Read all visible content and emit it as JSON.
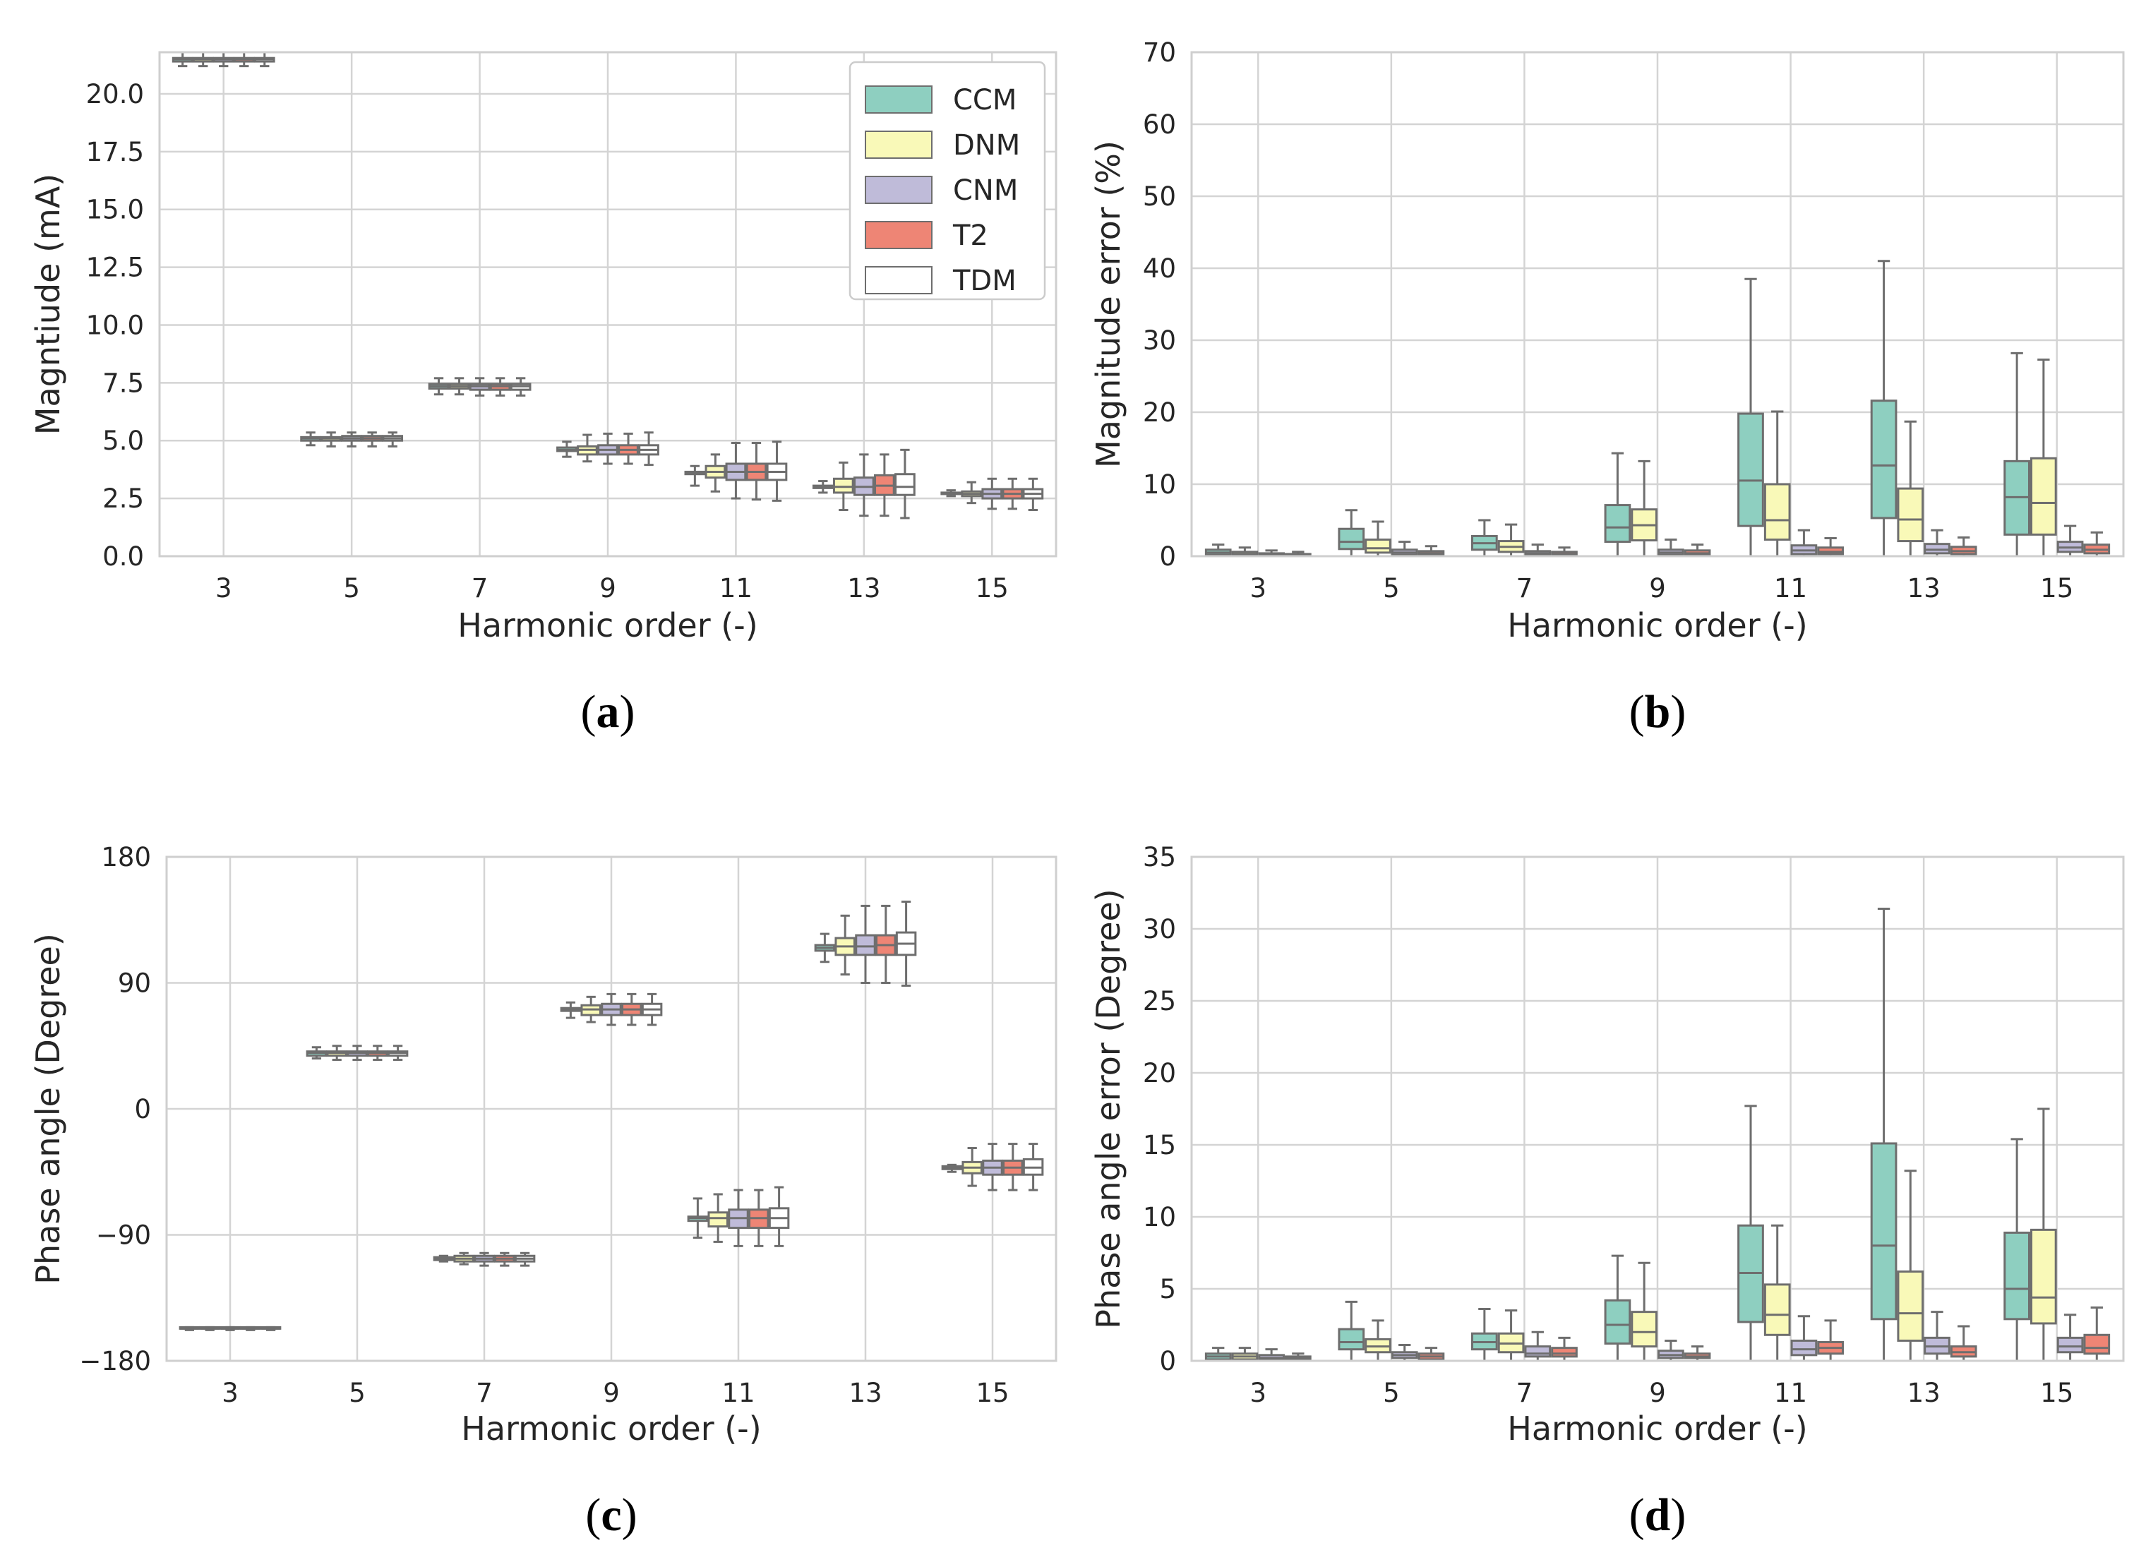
{
  "figure": {
    "palette": {
      "CCM": "#8ecfc0",
      "DNM": "#f9f9b8",
      "CNM": "#bfbbd9",
      "T2": "#ee8575",
      "TDM": "#ffffff",
      "line": "#6e6e6e",
      "grid": "#d4d4d4",
      "frame": "#cfcfcf"
    },
    "legend": [
      "CCM",
      "DNM",
      "CNM",
      "T2",
      "TDM"
    ]
  },
  "chart_data": [
    {
      "id": "a",
      "type": "box",
      "sublabel": "(a)",
      "xlabel": "Harmonic order (-)",
      "ylabel": "Magntiude (mA)",
      "categories": [
        "3",
        "5",
        "7",
        "9",
        "11",
        "13",
        "15"
      ],
      "yticks": [
        "0.0",
        "2.5",
        "5.0",
        "7.5",
        "10.0",
        "12.5",
        "15.0",
        "17.5",
        "20.0"
      ],
      "ylim": [
        0,
        21.8
      ],
      "ytick_values": [
        0,
        2.5,
        5,
        7.5,
        10,
        12.5,
        15,
        17.5,
        20
      ],
      "legend": "top-right",
      "series": [
        {
          "name": "CCM",
          "boxes": [
            [
              21.2,
              21.4,
              21.5,
              21.55,
              21.8
            ],
            [
              4.8,
              5.0,
              5.1,
              5.15,
              5.35
            ],
            [
              7.0,
              7.25,
              7.35,
              7.45,
              7.7
            ],
            [
              4.3,
              4.55,
              4.6,
              4.7,
              4.95
            ],
            [
              3.05,
              3.55,
              3.6,
              3.65,
              3.9
            ],
            [
              2.75,
              2.95,
              3.0,
              3.05,
              3.25
            ],
            [
              2.6,
              2.7,
              2.72,
              2.75,
              2.85
            ]
          ]
        },
        {
          "name": "DNM",
          "boxes": [
            [
              21.2,
              21.4,
              21.5,
              21.55,
              21.8
            ],
            [
              4.75,
              5.0,
              5.1,
              5.15,
              5.35
            ],
            [
              7.0,
              7.25,
              7.35,
              7.45,
              7.7
            ],
            [
              4.1,
              4.4,
              4.6,
              4.75,
              5.25
            ],
            [
              2.8,
              3.4,
              3.65,
              3.9,
              4.4
            ],
            [
              2.0,
              2.75,
              3.0,
              3.35,
              4.05
            ],
            [
              2.3,
              2.6,
              2.7,
              2.8,
              3.2
            ]
          ]
        },
        {
          "name": "CNM",
          "boxes": [
            [
              21.2,
              21.4,
              21.5,
              21.55,
              21.8
            ],
            [
              4.75,
              5.0,
              5.1,
              5.2,
              5.35
            ],
            [
              6.95,
              7.2,
              7.35,
              7.45,
              7.7
            ],
            [
              4.0,
              4.4,
              4.6,
              4.8,
              5.3
            ],
            [
              2.5,
              3.3,
              3.65,
              4.0,
              4.9
            ],
            [
              1.75,
              2.65,
              3.0,
              3.4,
              4.4
            ],
            [
              2.05,
              2.5,
              2.7,
              2.9,
              3.35
            ]
          ]
        },
        {
          "name": "T2",
          "boxes": [
            [
              21.2,
              21.4,
              21.5,
              21.55,
              21.8
            ],
            [
              4.75,
              5.0,
              5.1,
              5.2,
              5.35
            ],
            [
              6.95,
              7.2,
              7.35,
              7.45,
              7.7
            ],
            [
              4.0,
              4.4,
              4.6,
              4.8,
              5.3
            ],
            [
              2.45,
              3.3,
              3.65,
              4.0,
              4.9
            ],
            [
              1.75,
              2.65,
              3.05,
              3.5,
              4.4
            ],
            [
              2.05,
              2.5,
              2.7,
              2.9,
              3.35
            ]
          ]
        },
        {
          "name": "TDM",
          "boxes": [
            [
              21.2,
              21.4,
              21.5,
              21.55,
              21.8
            ],
            [
              4.75,
              5.0,
              5.1,
              5.2,
              5.35
            ],
            [
              6.95,
              7.2,
              7.35,
              7.45,
              7.7
            ],
            [
              3.95,
              4.4,
              4.6,
              4.8,
              5.35
            ],
            [
              2.4,
              3.3,
              3.65,
              4.0,
              4.95
            ],
            [
              1.65,
              2.65,
              3.0,
              3.55,
              4.6
            ],
            [
              2.0,
              2.5,
              2.7,
              2.9,
              3.35
            ]
          ]
        }
      ]
    },
    {
      "id": "b",
      "type": "box",
      "sublabel": "(b)",
      "xlabel": "Harmonic order (-)",
      "ylabel": "Magnitude error (%)",
      "categories": [
        "3",
        "5",
        "7",
        "9",
        "11",
        "13",
        "15"
      ],
      "yticks": [
        "0",
        "10",
        "20",
        "30",
        "40",
        "50",
        "60",
        "70"
      ],
      "ylim": [
        0,
        70
      ],
      "ytick_values": [
        0,
        10,
        20,
        30,
        40,
        50,
        60,
        70
      ],
      "series": [
        {
          "name": "CCM",
          "boxes": [
            [
              0,
              0.2,
              0.5,
              0.9,
              1.6
            ],
            [
              0,
              1.0,
              2.0,
              3.8,
              6.4
            ],
            [
              0,
              0.9,
              1.8,
              2.8,
              5.0
            ],
            [
              0,
              2.0,
              4.0,
              7.1,
              14.3
            ],
            [
              0,
              4.2,
              10.5,
              19.8,
              38.5
            ],
            [
              0,
              5.3,
              12.6,
              21.6,
              41.0
            ],
            [
              0,
              3.0,
              8.2,
              13.2,
              28.2
            ]
          ]
        },
        {
          "name": "DNM",
          "boxes": [
            [
              0,
              0.1,
              0.3,
              0.6,
              1.2
            ],
            [
              0,
              0.5,
              1.1,
              2.3,
              4.8
            ],
            [
              0,
              0.6,
              1.3,
              2.1,
              4.4
            ],
            [
              0,
              2.2,
              4.3,
              6.5,
              13.2
            ],
            [
              0,
              2.3,
              5.0,
              10.0,
              20.1
            ],
            [
              0,
              2.1,
              5.1,
              9.4,
              18.7
            ],
            [
              0,
              3.0,
              7.4,
              13.6,
              27.3
            ]
          ]
        },
        {
          "name": "CNM",
          "boxes": [
            [
              0,
              0.1,
              0.2,
              0.4,
              0.8
            ],
            [
              0,
              0.2,
              0.5,
              0.9,
              2.0
            ],
            [
              0,
              0.2,
              0.4,
              0.7,
              1.6
            ],
            [
              0,
              0.2,
              0.5,
              0.9,
              2.3
            ],
            [
              0,
              0.3,
              0.8,
              1.5,
              3.6
            ],
            [
              0,
              0.4,
              0.9,
              1.7,
              3.6
            ],
            [
              0,
              0.6,
              1.2,
              2.0,
              4.2
            ]
          ]
        },
        {
          "name": "T2",
          "boxes": [
            [
              0,
              0.1,
              0.2,
              0.3,
              0.6
            ],
            [
              0,
              0.2,
              0.4,
              0.7,
              1.4
            ],
            [
              0,
              0.2,
              0.3,
              0.6,
              1.2
            ],
            [
              0,
              0.2,
              0.4,
              0.8,
              1.6
            ],
            [
              0,
              0.3,
              0.6,
              1.2,
              2.5
            ],
            [
              0,
              0.3,
              0.7,
              1.3,
              2.6
            ],
            [
              0,
              0.4,
              0.9,
              1.6,
              3.3
            ]
          ]
        }
      ]
    },
    {
      "id": "c",
      "type": "box",
      "sublabel": "(c)",
      "xlabel": "Harmonic order (-)",
      "ylabel": "Phase angle (Degree)",
      "categories": [
        "3",
        "5",
        "7",
        "9",
        "11",
        "13",
        "15"
      ],
      "yticks": [
        "−180",
        "−90",
        "0",
        "90",
        "180"
      ],
      "ylim": [
        -180,
        180
      ],
      "ytick_values": [
        -180,
        -90,
        0,
        90,
        180
      ],
      "series": [
        {
          "name": "CCM",
          "boxes": [
            [
              -158,
              -157,
              -157,
              -156,
              -156
            ],
            [
              36,
              38,
              40,
              41,
              44
            ],
            [
              -109,
              -108,
              -107,
              -106,
              -105
            ],
            [
              65,
              70,
              71,
              72,
              76
            ],
            [
              -92,
              -80,
              -78,
              -77,
              -64
            ],
            [
              105,
              113,
              115,
              117,
              125
            ],
            [
              -45,
              -43,
              -42,
              -41,
              -40
            ]
          ]
        },
        {
          "name": "DNM",
          "boxes": [
            [
              -158,
              -157,
              -157,
              -156,
              -156
            ],
            [
              35,
              38,
              40,
              41,
              45
            ],
            [
              -111,
              -109,
              -107,
              -105,
              -103
            ],
            [
              62,
              67,
              71,
              74,
              80
            ],
            [
              -95,
              -84,
              -78,
              -74,
              -61
            ],
            [
              96,
              110,
              116,
              122,
              138
            ],
            [
              -55,
              -46,
              -42,
              -38,
              -28
            ]
          ]
        },
        {
          "name": "CNM",
          "boxes": [
            [
              -158,
              -157,
              -157,
              -156,
              -156
            ],
            [
              35,
              38,
              40,
              41,
              45
            ],
            [
              -112,
              -109,
              -107,
              -105,
              -103
            ],
            [
              60,
              67,
              71,
              75,
              82
            ],
            [
              -98,
              -85,
              -78,
              -72,
              -58
            ],
            [
              90,
              110,
              116,
              124,
              145
            ],
            [
              -58,
              -47,
              -42,
              -37,
              -25
            ]
          ]
        },
        {
          "name": "T2",
          "boxes": [
            [
              -158,
              -157,
              -157,
              -156,
              -156
            ],
            [
              35,
              38,
              40,
              41,
              45
            ],
            [
              -112,
              -109,
              -107,
              -105,
              -103
            ],
            [
              60,
              67,
              71,
              75,
              82
            ],
            [
              -98,
              -85,
              -78,
              -72,
              -58
            ],
            [
              90,
              110,
              117,
              124,
              145
            ],
            [
              -58,
              -47,
              -42,
              -37,
              -25
            ]
          ]
        },
        {
          "name": "TDM",
          "boxes": [
            [
              -158,
              -157,
              -157,
              -156,
              -156
            ],
            [
              35,
              38,
              40,
              41,
              45
            ],
            [
              -112,
              -109,
              -107,
              -105,
              -103
            ],
            [
              60,
              67,
              71,
              75,
              82
            ],
            [
              -98,
              -85,
              -78,
              -71,
              -56
            ],
            [
              88,
              110,
              118,
              126,
              148
            ],
            [
              -58,
              -47,
              -42,
              -36,
              -25
            ]
          ]
        }
      ]
    },
    {
      "id": "d",
      "type": "box",
      "sublabel": "(d)",
      "xlabel": "Harmonic order (-)",
      "ylabel": "Phase angle error (Degree)",
      "categories": [
        "3",
        "5",
        "7",
        "9",
        "11",
        "13",
        "15"
      ],
      "yticks": [
        "0",
        "5",
        "10",
        "15",
        "20",
        "25",
        "30",
        "35"
      ],
      "ylim": [
        0,
        35
      ],
      "ytick_values": [
        0,
        5,
        10,
        15,
        20,
        25,
        30,
        35
      ],
      "series": [
        {
          "name": "CCM",
          "boxes": [
            [
              0,
              0.1,
              0.3,
              0.5,
              0.9
            ],
            [
              0,
              0.8,
              1.3,
              2.2,
              4.1
            ],
            [
              0,
              0.8,
              1.3,
              1.9,
              3.6
            ],
            [
              0,
              1.2,
              2.5,
              4.2,
              7.3
            ],
            [
              0,
              2.7,
              6.1,
              9.4,
              17.7
            ],
            [
              0,
              2.9,
              8.0,
              15.1,
              31.4
            ],
            [
              0,
              2.9,
              5.0,
              8.9,
              15.4
            ]
          ]
        },
        {
          "name": "DNM",
          "boxes": [
            [
              0,
              0.1,
              0.3,
              0.5,
              0.9
            ],
            [
              0,
              0.6,
              1.0,
              1.5,
              2.8
            ],
            [
              0,
              0.6,
              1.2,
              1.9,
              3.5
            ],
            [
              0,
              1.0,
              2.0,
              3.4,
              6.8
            ],
            [
              0,
              1.8,
              3.2,
              5.3,
              9.4
            ],
            [
              0,
              1.4,
              3.3,
              6.2,
              13.2
            ],
            [
              0,
              2.6,
              4.4,
              9.1,
              17.5
            ]
          ]
        },
        {
          "name": "CNM",
          "boxes": [
            [
              0,
              0.1,
              0.2,
              0.4,
              0.8
            ],
            [
              0,
              0.2,
              0.4,
              0.6,
              1.1
            ],
            [
              0,
              0.3,
              0.5,
              1.0,
              2.0
            ],
            [
              0,
              0.2,
              0.4,
              0.7,
              1.4
            ],
            [
              0,
              0.4,
              0.8,
              1.4,
              3.1
            ],
            [
              0,
              0.5,
              1.0,
              1.6,
              3.4
            ],
            [
              0,
              0.6,
              1.0,
              1.6,
              3.2
            ]
          ]
        },
        {
          "name": "T2",
          "boxes": [
            [
              0,
              0.1,
              0.2,
              0.3,
              0.5
            ],
            [
              0,
              0.1,
              0.3,
              0.5,
              0.9
            ],
            [
              0,
              0.3,
              0.5,
              0.9,
              1.6
            ],
            [
              0,
              0.2,
              0.3,
              0.5,
              1.0
            ],
            [
              0,
              0.5,
              0.9,
              1.3,
              2.8
            ],
            [
              0,
              0.3,
              0.6,
              1.0,
              2.4
            ],
            [
              0,
              0.5,
              0.9,
              1.8,
              3.7
            ]
          ]
        }
      ]
    }
  ]
}
